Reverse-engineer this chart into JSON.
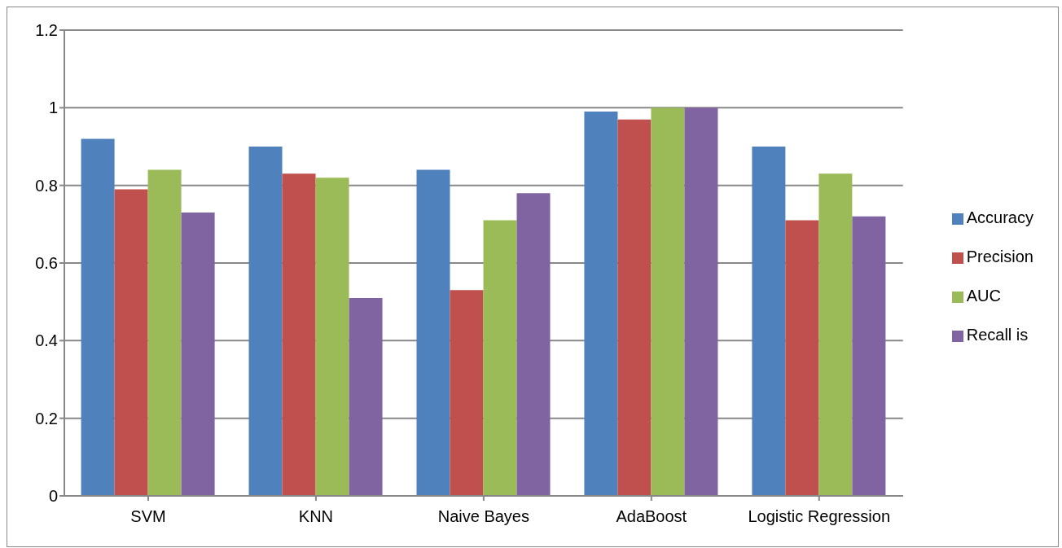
{
  "chart_data": {
    "type": "bar",
    "categories": [
      "SVM",
      "KNN",
      "Naive Bayes",
      "AdaBoost",
      "Logistic Regression"
    ],
    "series": [
      {
        "name": "Accuracy",
        "color": "#4f81bd",
        "values": [
          0.92,
          0.9,
          0.84,
          0.99,
          0.9
        ]
      },
      {
        "name": "Precision",
        "color": "#c0504d",
        "values": [
          0.79,
          0.83,
          0.53,
          0.97,
          0.71
        ]
      },
      {
        "name": "AUC",
        "color": "#9bbb59",
        "values": [
          0.84,
          0.82,
          0.71,
          1.0,
          0.83
        ]
      },
      {
        "name": "Recall is",
        "color": "#8064a2",
        "values": [
          0.73,
          0.51,
          0.78,
          1.0,
          0.72
        ]
      }
    ],
    "ylim": [
      0,
      1.2
    ],
    "yticks": [
      0,
      0.2,
      0.4,
      0.6,
      0.8,
      1,
      1.2
    ],
    "grid": "y",
    "legend": "right"
  }
}
